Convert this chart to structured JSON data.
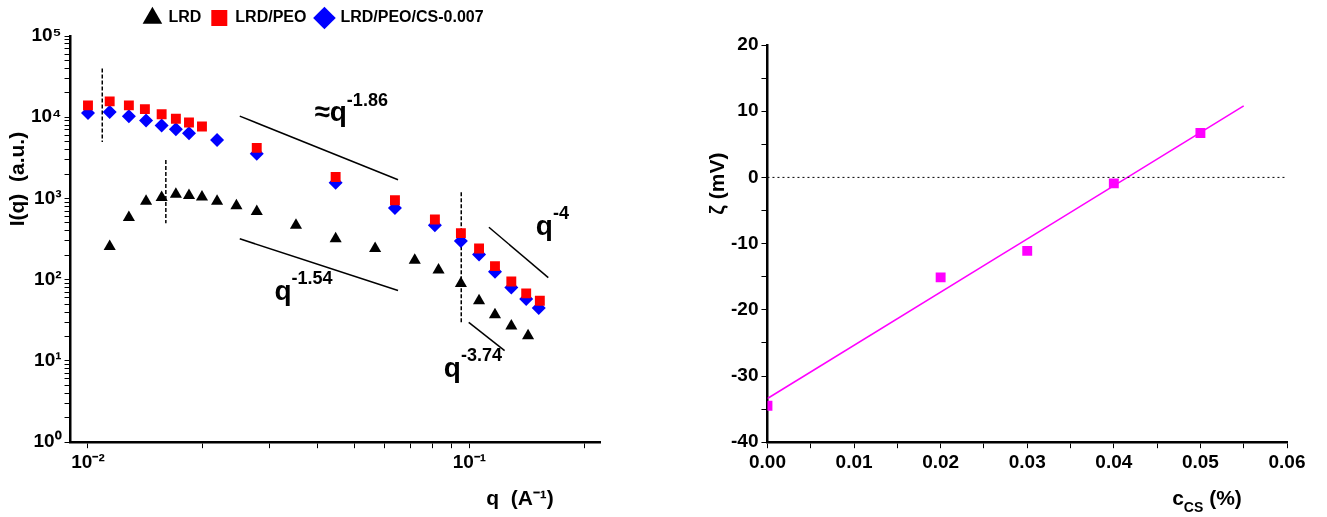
{
  "chart_data": [
    {
      "type": "scatter",
      "xlabel": "q  (A⁻¹)",
      "ylabel": "I(q)  (a.u.)",
      "log": "xy",
      "legend": "top",
      "grid": false,
      "xlim": [
        0.009,
        0.22
      ],
      "ylim": [
        1,
        100000
      ],
      "xticks": [
        {
          "value": 0.01,
          "label": "10⁻²"
        },
        {
          "value": 0.02,
          "label": null
        },
        {
          "value": 0.03,
          "label": null
        },
        {
          "value": 0.04,
          "label": null
        },
        {
          "value": 0.05,
          "label": null
        },
        {
          "value": 0.06,
          "label": null
        },
        {
          "value": 0.07,
          "label": null
        },
        {
          "value": 0.08,
          "label": null
        },
        {
          "value": 0.09,
          "label": null
        },
        {
          "value": 0.1,
          "label": "10⁻¹"
        },
        {
          "value": 0.2,
          "label": null
        }
      ],
      "yticks": [
        {
          "value": 1,
          "label": "10⁰"
        },
        {
          "value": 2,
          "label": null
        },
        {
          "value": 3,
          "label": null
        },
        {
          "value": 4,
          "label": null
        },
        {
          "value": 5,
          "label": null
        },
        {
          "value": 6,
          "label": null
        },
        {
          "value": 7,
          "label": null
        },
        {
          "value": 8,
          "label": null
        },
        {
          "value": 9,
          "label": null
        },
        {
          "value": 10,
          "label": "10¹"
        },
        {
          "value": 20,
          "label": null
        },
        {
          "value": 30,
          "label": null
        },
        {
          "value": 40,
          "label": null
        },
        {
          "value": 50,
          "label": null
        },
        {
          "value": 60,
          "label": null
        },
        {
          "value": 70,
          "label": null
        },
        {
          "value": 80,
          "label": null
        },
        {
          "value": 90,
          "label": null
        },
        {
          "value": 100,
          "label": "10²"
        },
        {
          "value": 200,
          "label": null
        },
        {
          "value": 300,
          "label": null
        },
        {
          "value": 400,
          "label": null
        },
        {
          "value": 500,
          "label": null
        },
        {
          "value": 600,
          "label": null
        },
        {
          "value": 700,
          "label": null
        },
        {
          "value": 800,
          "label": null
        },
        {
          "value": 900,
          "label": null
        },
        {
          "value": 1000,
          "label": "10³"
        },
        {
          "value": 2000,
          "label": null
        },
        {
          "value": 3000,
          "label": null
        },
        {
          "value": 4000,
          "label": null
        },
        {
          "value": 5000,
          "label": null
        },
        {
          "value": 6000,
          "label": null
        },
        {
          "value": 7000,
          "label": null
        },
        {
          "value": 8000,
          "label": null
        },
        {
          "value": 9000,
          "label": null
        },
        {
          "value": 10000,
          "label": "10⁴"
        },
        {
          "value": 20000,
          "label": null
        },
        {
          "value": 30000,
          "label": null
        },
        {
          "value": 40000,
          "label": null
        },
        {
          "value": 50000,
          "label": null
        },
        {
          "value": 60000,
          "label": null
        },
        {
          "value": 70000,
          "label": null
        },
        {
          "value": 80000,
          "label": null
        },
        {
          "value": 90000,
          "label": null
        },
        {
          "value": 100000,
          "label": "10⁵"
        }
      ],
      "series": [
        {
          "type": "scatter",
          "name": "LRD",
          "color": "#000000",
          "marker": "triangle",
          "x": [
            0.0114,
            0.0128,
            0.0142,
            0.0156,
            0.017,
            0.0184,
            0.0199,
            0.0218,
            0.0245,
            0.0277,
            0.0351,
            0.0446,
            0.0566,
            0.0719,
            0.083,
            0.095,
            0.106,
            0.1167,
            0.1288,
            0.1425
          ],
          "values": [
            256,
            583,
            926,
            1030,
            1130,
            1090,
            1045,
            926,
            811,
            689,
            469,
            319,
            243,
            174,
            132,
            90,
            55,
            37,
            27,
            20.5
          ]
        },
        {
          "type": "scatter",
          "name": "LRD/PEO",
          "color": "#ff0000",
          "marker": "square",
          "x": [
            0.01,
            0.0114,
            0.0128,
            0.0141,
            0.0156,
            0.017,
            0.0184,
            0.0199,
            0.0277,
            0.0446,
            0.0638,
            0.0812,
            0.095,
            0.106,
            0.1167,
            0.1288,
            0.1409,
            0.153
          ],
          "values": [
            14000,
            15700,
            14000,
            12600,
            10900,
            9600,
            8600,
            7700,
            4200,
            1840,
            950,
            550,
            375,
            242,
            147,
            95,
            68,
            55
          ]
        },
        {
          "type": "scatter",
          "name": "LRD/PEO/CS-0.007",
          "color": "#0000ff",
          "marker": "diamond",
          "x": [
            0.01,
            0.0114,
            0.0128,
            0.0142,
            0.0156,
            0.017,
            0.0184,
            0.0218,
            0.0277,
            0.0446,
            0.0638,
            0.0812,
            0.095,
            0.106,
            0.1167,
            0.1288,
            0.1409,
            0.152
          ],
          "values": [
            11300,
            11600,
            10300,
            9100,
            7940,
            7110,
            6370,
            5230,
            3550,
            1560,
            766,
            468,
            300,
            205,
            125,
            80,
            58,
            45
          ]
        },
        {
          "type": "line",
          "color": "#000000",
          "line_style": "solid",
          "x": [
            0.025,
            0.065
          ],
          "values": [
            10330,
            1700
          ]
        },
        {
          "type": "line",
          "color": "#000000",
          "line_style": "solid",
          "x": [
            0.025,
            0.065
          ],
          "values": [
            319,
            73.5
          ]
        },
        {
          "type": "line",
          "color": "#000000",
          "line_style": "solid",
          "x": [
            0.1125,
            0.161
          ],
          "values": [
            443,
            106
          ]
        },
        {
          "type": "line",
          "color": "#000000",
          "line_style": "solid",
          "x": [
            0.0996,
            0.1237
          ],
          "values": [
            29.9,
            13.4
          ]
        },
        {
          "type": "line",
          "color": "#000000",
          "line_style": "dashed",
          "x": [
            0.0109,
            0.0109
          ],
          "values": [
            39900,
            4950
          ]
        },
        {
          "type": "line",
          "color": "#000000",
          "line_style": "dashed",
          "x": [
            0.016,
            0.016
          ],
          "values": [
            2970,
            495
          ]
        },
        {
          "type": "line",
          "color": "#000000",
          "line_style": "dashed",
          "x": [
            0.0952,
            0.0952
          ],
          "values": [
            1190,
            30
          ]
        }
      ],
      "annotations": [
        "≈q$^{-1.86}$",
        "q$^{-1.54}$",
        "q$^{-4}$",
        "q$^{-3.74}$"
      ]
    },
    {
      "type": "scatter",
      "xlabel": "c$_{CS}$ (%)",
      "ylabel": "ζ (mV)",
      "grid": false,
      "xlim": [
        0,
        0.06
      ],
      "ylim": [
        -40,
        20
      ],
      "xticks": [
        {
          "value": 0,
          "label": "0.00"
        },
        {
          "value": 0.005,
          "label": null
        },
        {
          "value": 0.01,
          "label": "0.01"
        },
        {
          "value": 0.015,
          "label": null
        },
        {
          "value": 0.02,
          "label": "0.02"
        },
        {
          "value": 0.025,
          "label": null
        },
        {
          "value": 0.03,
          "label": "0.03"
        },
        {
          "value": 0.035,
          "label": null
        },
        {
          "value": 0.04,
          "label": "0.04"
        },
        {
          "value": 0.045,
          "label": null
        },
        {
          "value": 0.05,
          "label": "0.05"
        },
        {
          "value": 0.055,
          "label": null
        },
        {
          "value": 0.06,
          "label": "0.06"
        }
      ],
      "yticks": [
        -40,
        {
          "value": -35,
          "label": null
        },
        -30,
        {
          "value": -25,
          "label": null
        },
        -20,
        {
          "value": -15,
          "label": null
        },
        -10,
        {
          "value": -5,
          "label": null
        },
        0,
        {
          "value": 5,
          "label": null
        },
        10,
        {
          "value": 15,
          "label": null
        },
        20
      ],
      "ref_lines": [
        {
          "axis": "y",
          "value": 0,
          "color": "#000000",
          "line_style": "dotted"
        }
      ],
      "series": [
        {
          "type": "scatter",
          "color": "#ff00ff",
          "marker": "square",
          "x": [
            0,
            0.02,
            0.03,
            0.04,
            0.05
          ],
          "values": [
            -34.5,
            -15.1,
            -11.1,
            -0.9,
            6.7
          ]
        },
        {
          "type": "line",
          "color": "#ff00ff",
          "line_style": "solid",
          "x": [
            0,
            0.055
          ],
          "values": [
            -33.4,
            10.8
          ]
        }
      ]
    }
  ]
}
